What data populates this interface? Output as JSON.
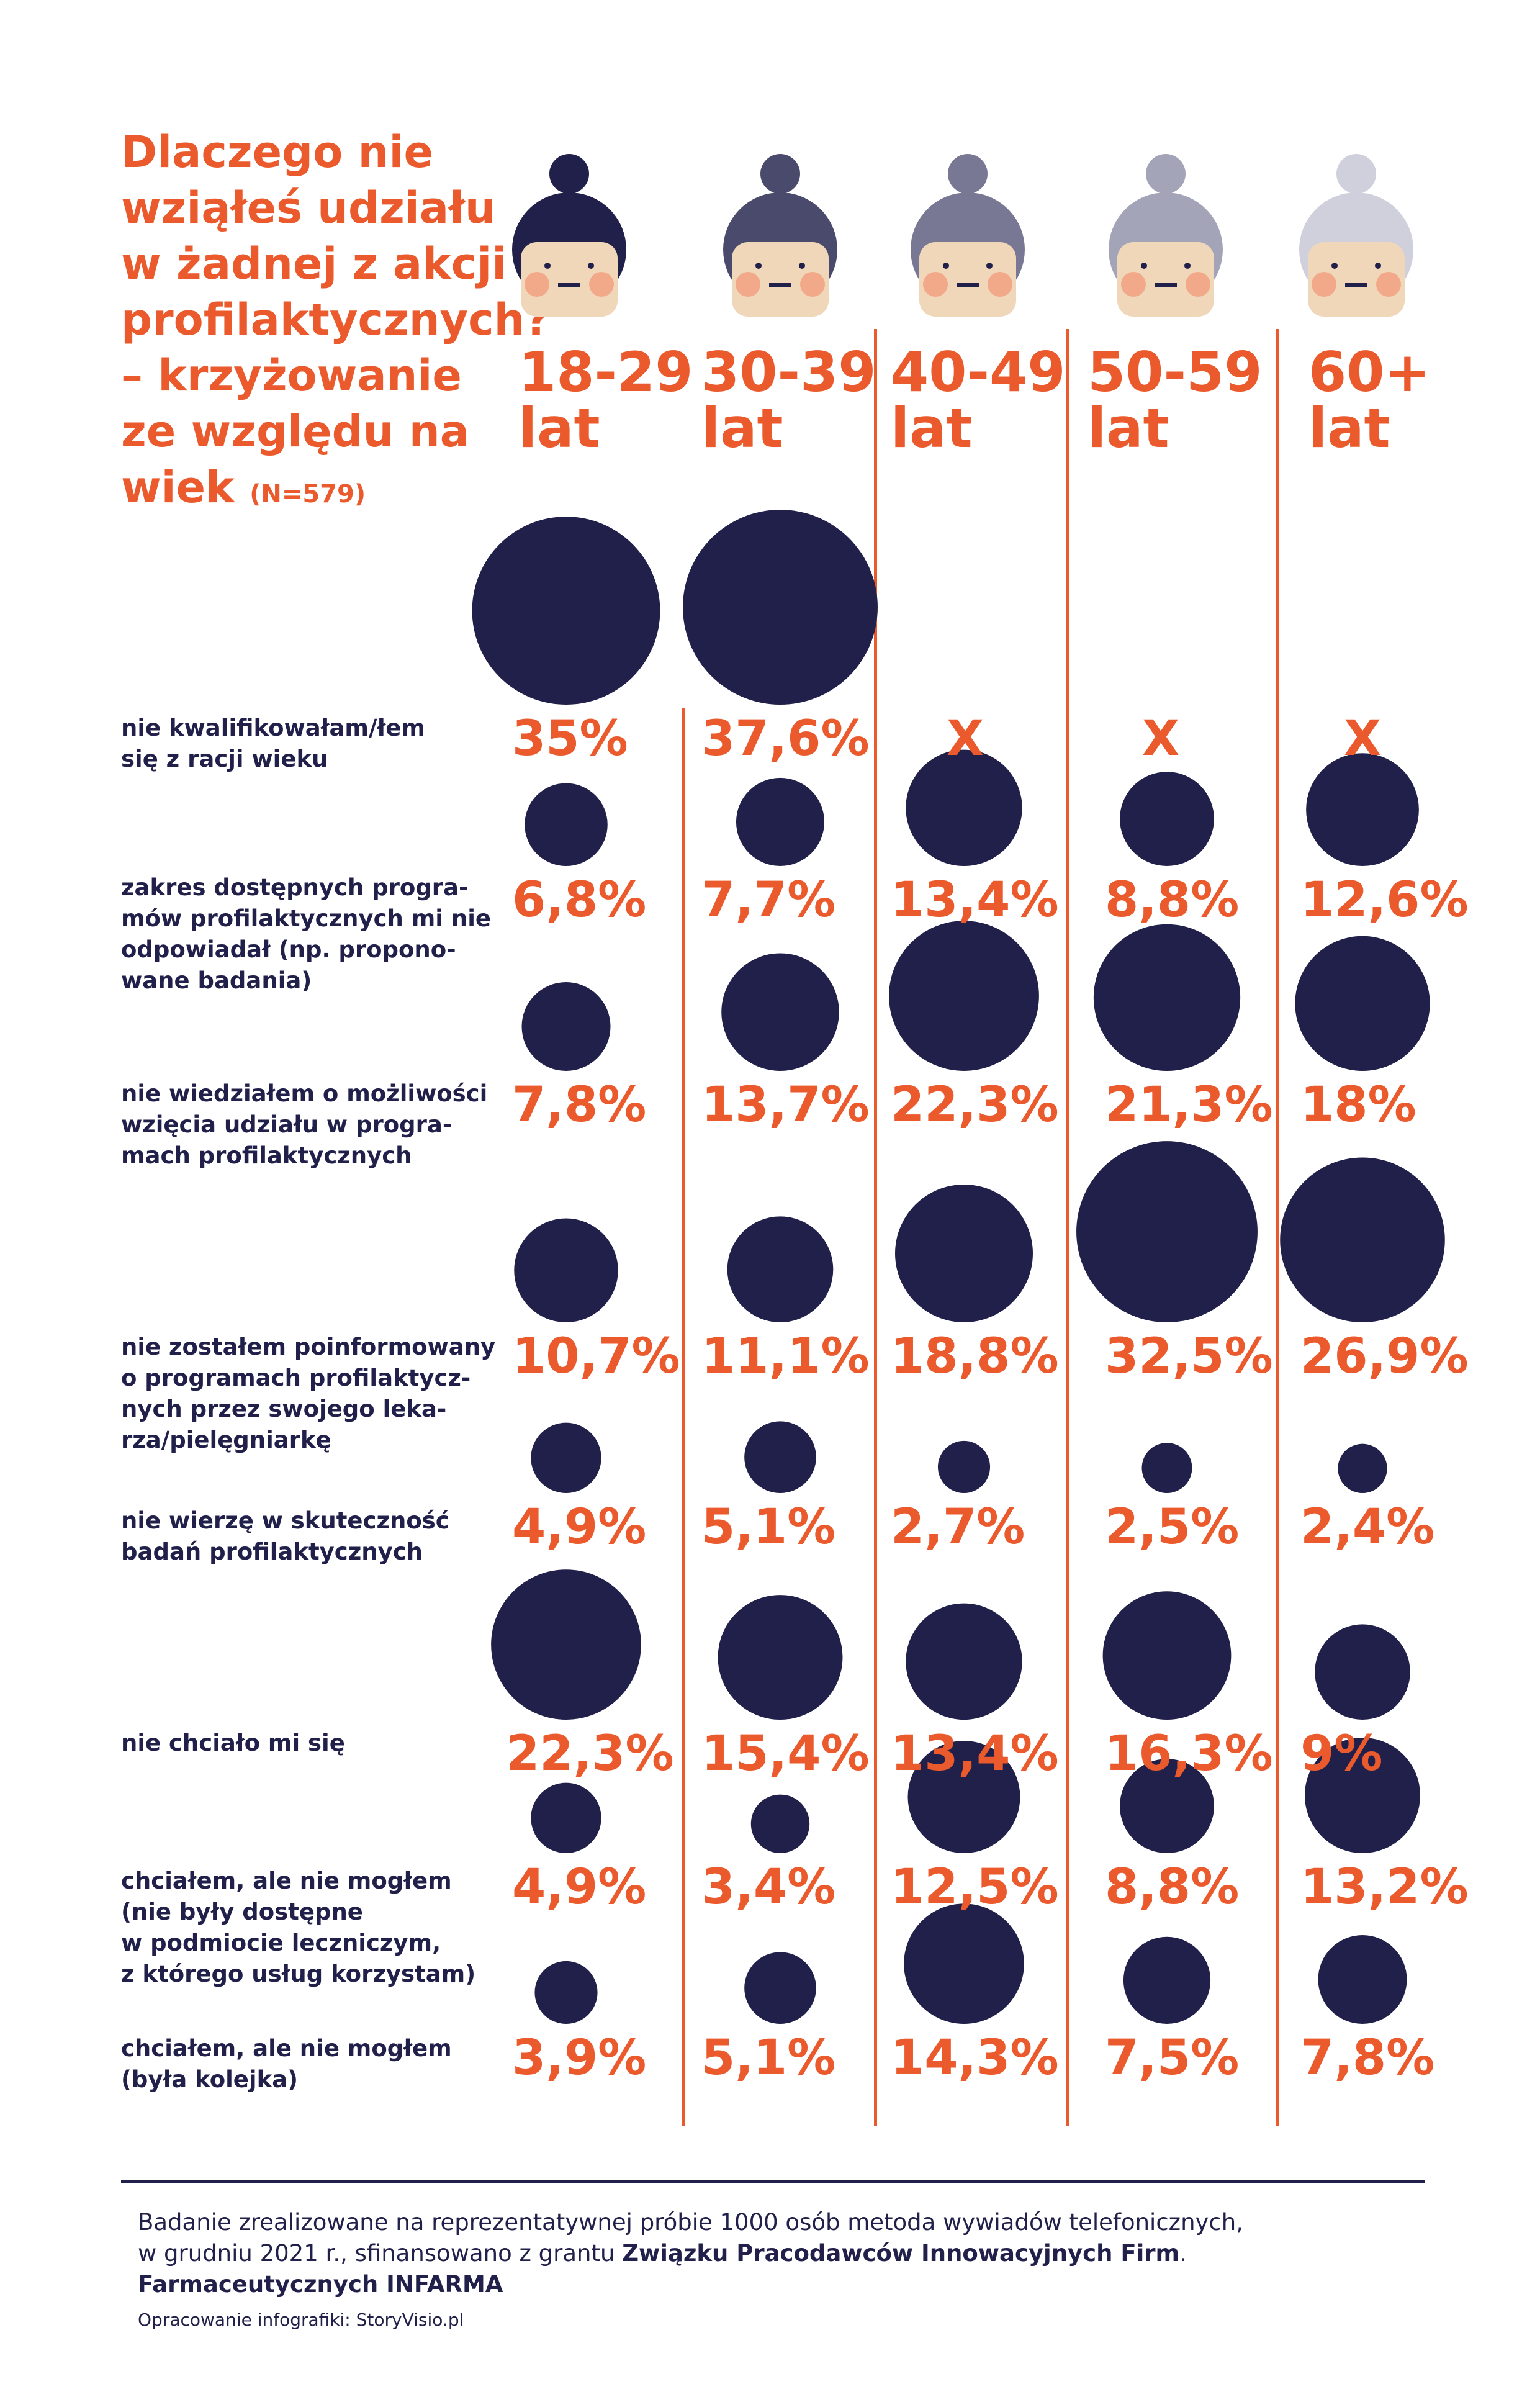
{
  "title": {
    "lines": [
      "Dlaczego nie",
      "wziąłeś udziału",
      "w żadnej z akcji",
      "profilaktycznych?",
      "– krzyżowanie",
      "ze względu na",
      "wiek"
    ],
    "n": "(N=579)"
  },
  "colors": {
    "accent": "#ea5a2c",
    "dark": "#20204a",
    "skin": "#f0d7b9",
    "cheek": "#f2a98a"
  },
  "age_groups": [
    {
      "line1": "18-29",
      "line2": "lat",
      "hair": "#20204a"
    },
    {
      "line1": "30-39",
      "line2": "lat",
      "hair": "#4a4a6c"
    },
    {
      "line1": "40-49",
      "line2": "lat",
      "hair": "#787894"
    },
    {
      "line1": "50-59",
      "line2": "lat",
      "hair": "#a4a4b8"
    },
    {
      "line1": "60+",
      "line2": "lat",
      "hair": "#d0d0dc"
    }
  ],
  "rows": [
    {
      "label": [
        "nie kwalifikowałam/łem",
        "się z racji wieku"
      ],
      "values": [
        "35%",
        "37,6%",
        "X",
        "X",
        "X"
      ]
    },
    {
      "label": [
        "zakres dostępnych progra-",
        "mów profilaktycznych mi nie",
        "odpowiadał (np. propono-",
        "wane badania)"
      ],
      "values": [
        "6,8%",
        "7,7%",
        "13,4%",
        "8,8%",
        "12,6%"
      ]
    },
    {
      "label": [
        "nie wiedziałem o możliwości",
        "wzięcia udziału w progra-",
        "mach profilaktycznych"
      ],
      "values": [
        "7,8%",
        "13,7%",
        "22,3%",
        "21,3%",
        "18%"
      ]
    },
    {
      "label": [
        "nie zostałem poinformowany",
        "o programach profilaktycz-",
        "nych przez swojego leka-",
        "rza/pielęgniarkę"
      ],
      "values": [
        "10,7%",
        "11,1%",
        "18,8%",
        "32,5%",
        "26,9%"
      ]
    },
    {
      "label": [
        "nie wierzę w skuteczność",
        "badań profilaktycznych"
      ],
      "values": [
        "4,9%",
        "5,1%",
        "2,7%",
        "2,5%",
        "2,4%"
      ]
    },
    {
      "label": [
        "nie chciało mi się"
      ],
      "values": [
        "22,3%",
        "15,4%",
        "13,4%",
        "16,3%",
        "9%"
      ]
    },
    {
      "label": [
        "chciałem, ale nie mogłem",
        "(nie były dostępne",
        "w podmiocie leczniczym,",
        "z którego usług korzystam)"
      ],
      "values": [
        "4,9%",
        "3,4%",
        "12,5%",
        "8,8%",
        "13,2%"
      ]
    },
    {
      "label": [
        "chciałem, ale nie mogłem",
        "(była kolejka)"
      ],
      "values": [
        "3,9%",
        "5,1%",
        "14,3%",
        "7,5%",
        "7,8%"
      ]
    }
  ],
  "chart_data": {
    "type": "table",
    "columns": [
      "18-29 lat",
      "30-39 lat",
      "40-49 lat",
      "50-59 lat",
      "60+ lat"
    ],
    "rows": [
      {
        "category": "nie kwalifikowałam/łem się z racji wieku",
        "values": [
          35,
          37.6,
          null,
          null,
          null
        ]
      },
      {
        "category": "zakres dostępnych programów profilaktycznych mi nie odpowiadał (np. proponowane badania)",
        "values": [
          6.8,
          7.7,
          13.4,
          8.8,
          12.6
        ]
      },
      {
        "category": "nie wiedziałem o możliwości wzięcia udziału w programach profilaktycznych",
        "values": [
          7.8,
          13.7,
          22.3,
          21.3,
          18
        ]
      },
      {
        "category": "nie zostałem poinformowany o programach profilaktycznych przez swojego lekarza/pielęgniarkę",
        "values": [
          10.7,
          11.1,
          18.8,
          32.5,
          26.9
        ]
      },
      {
        "category": "nie wierzę w skuteczność badań profilaktycznych",
        "values": [
          4.9,
          5.1,
          2.7,
          2.5,
          2.4
        ]
      },
      {
        "category": "nie chciało mi się",
        "values": [
          22.3,
          15.4,
          13.4,
          16.3,
          9
        ]
      },
      {
        "category": "chciałem, ale nie mogłem (nie były dostępne w podmiocie leczniczym, z którego usług korzystam)",
        "values": [
          4.9,
          3.4,
          12.5,
          8.8,
          13.2
        ]
      },
      {
        "category": "chciałem, ale nie mogłem (była kolejka)",
        "values": [
          3.9,
          5.1,
          14.3,
          7.5,
          7.8
        ]
      }
    ]
  },
  "footer": {
    "line1": "Badanie zrealizowane na reprezentatywnej próbie 1000 osób metoda wywiadów telefonicznych,",
    "line2_plain": "w grudniu 2021 r., sfinansowano z grantu ",
    "line2_bold": "Związku Pracodawców Innowacyjnych Firm",
    "line2_end": ".",
    "line3_bold": "Farmaceutycznych INFARMA",
    "credit": "Opracowanie infografiki: StoryVisio.pl"
  }
}
